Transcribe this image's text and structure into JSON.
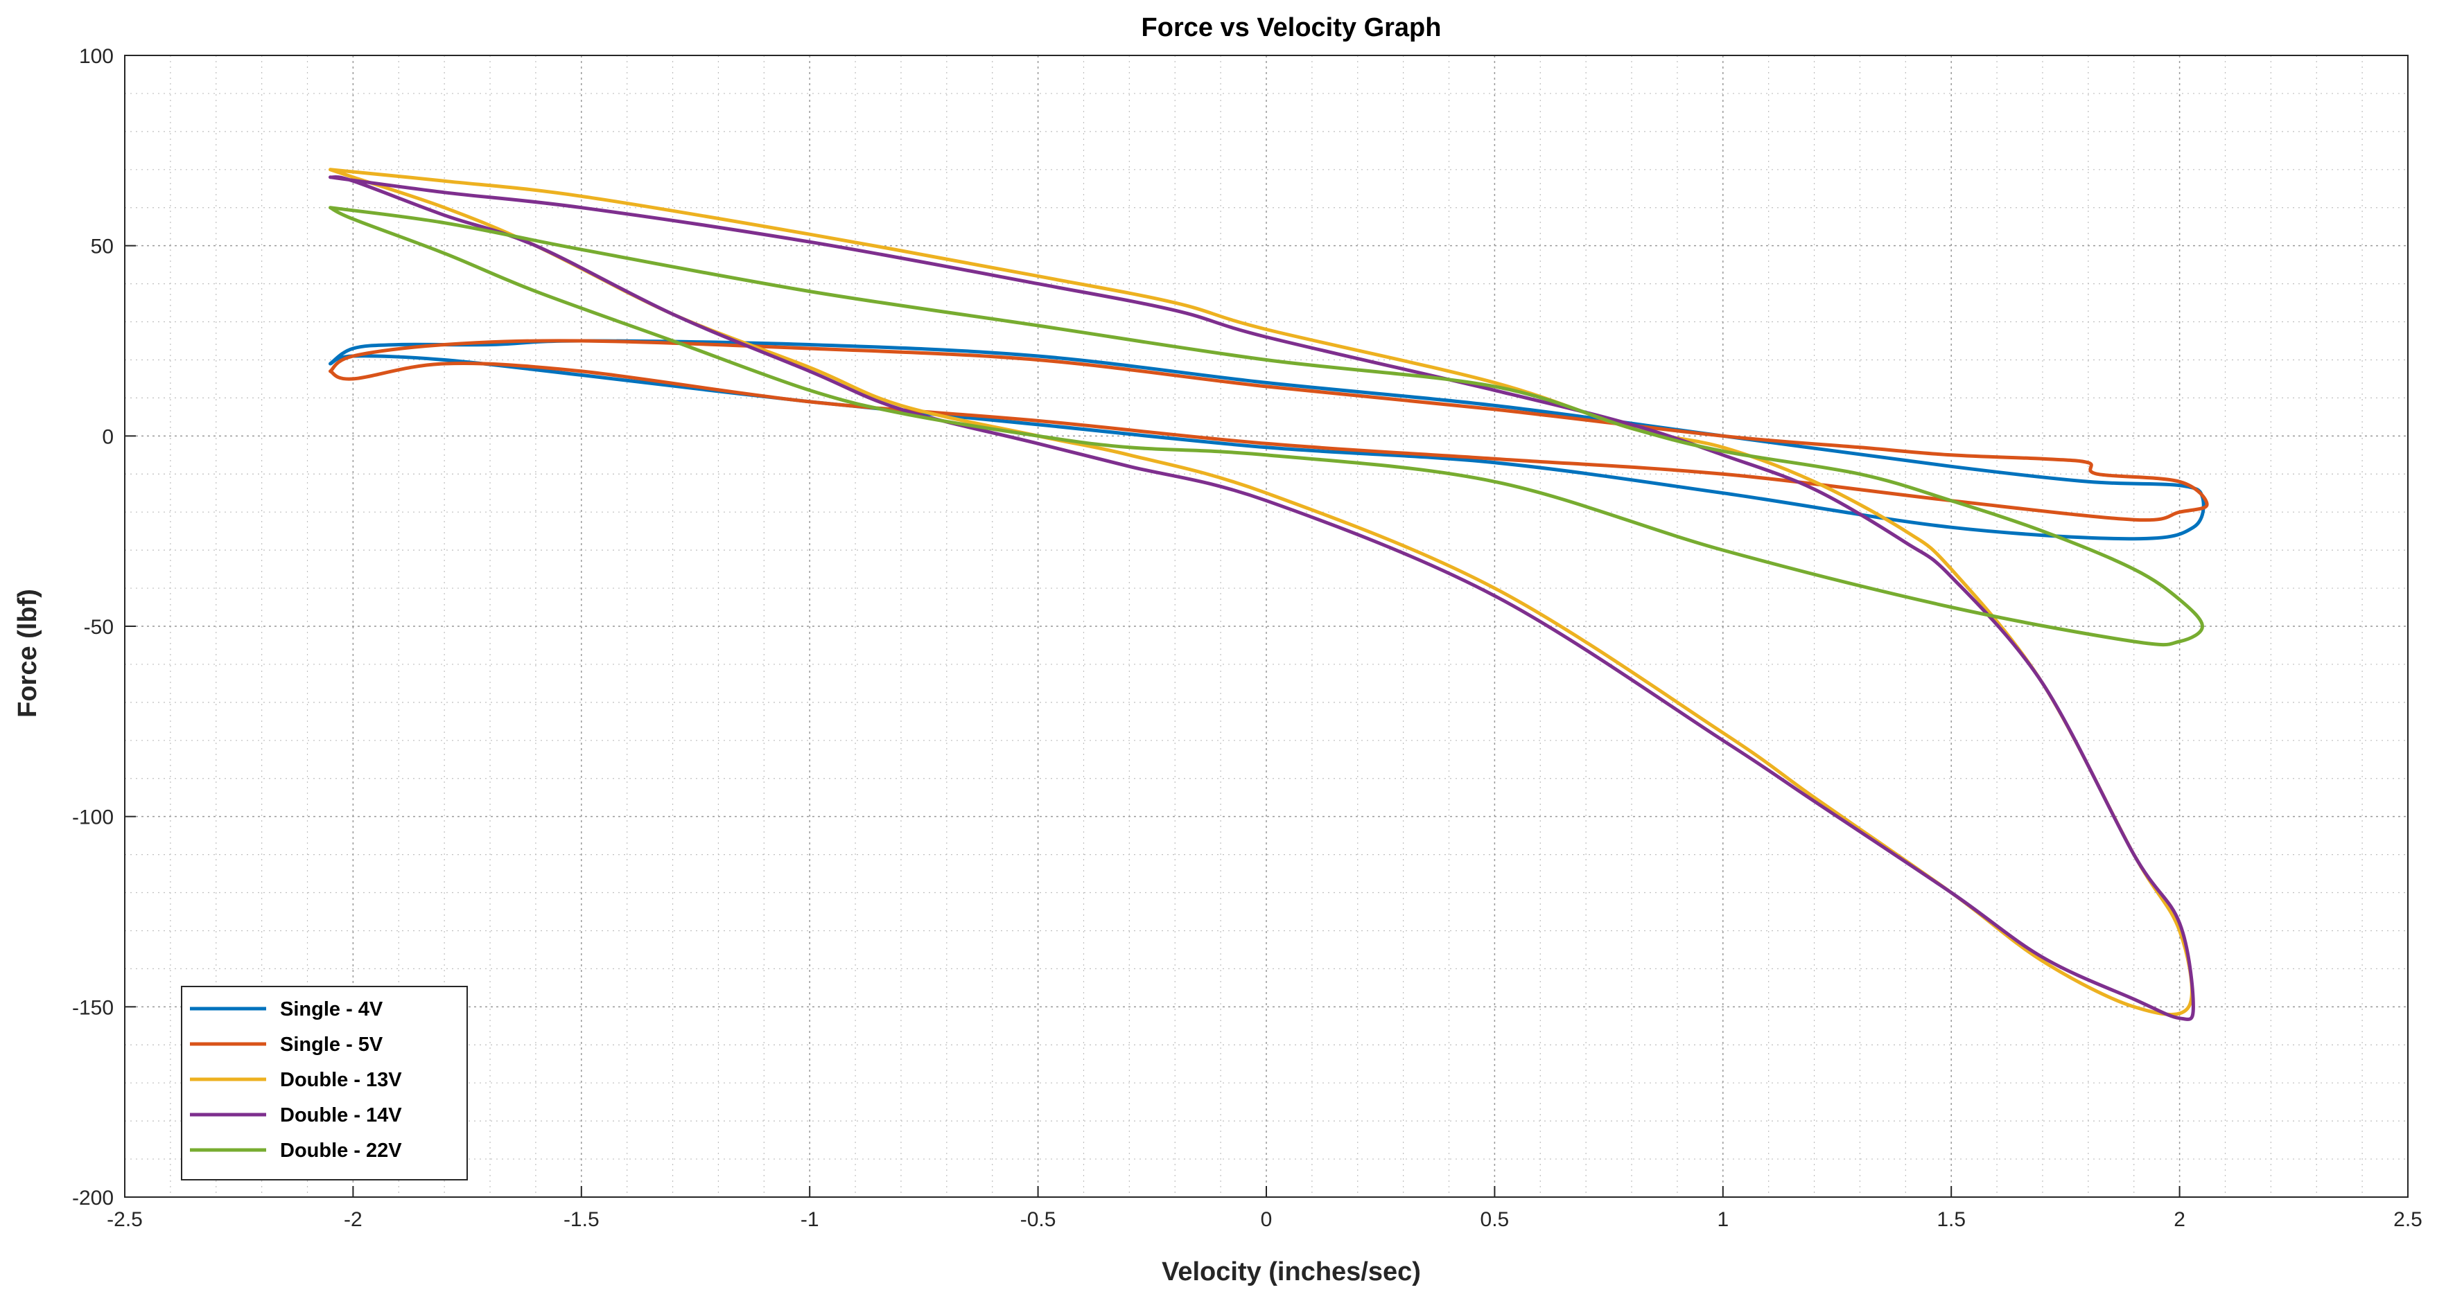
{
  "chart_data": {
    "type": "line",
    "title": "Force vs Velocity Graph",
    "xlabel": "Velocity (inches/sec)",
    "ylabel": "Force (lbf)",
    "xlim": [
      -2.5,
      2.5
    ],
    "ylim": [
      -200,
      100
    ],
    "xticks": [
      -2.5,
      -2,
      -1.5,
      -1,
      -0.5,
      0,
      0.5,
      1,
      1.5,
      2,
      2.5
    ],
    "yticks": [
      -200,
      -150,
      -100,
      -50,
      0,
      50,
      100
    ],
    "xtick_labels": [
      "-2.5",
      "-2",
      "-1.5",
      "-1",
      "-0.5",
      "0",
      "0.5",
      "1",
      "1.5",
      "2",
      "2.5"
    ],
    "ytick_labels": [
      "-200",
      "-150",
      "-100",
      "-50",
      "0",
      "50",
      "100"
    ],
    "grid": true,
    "minor_grid": true,
    "legend_position": "bottom-left",
    "series": [
      {
        "name": "Single - 4V",
        "color": "#0072BD",
        "points": [
          [
            -2.05,
            19
          ],
          [
            -2.0,
            23
          ],
          [
            -1.9,
            24
          ],
          [
            -1.7,
            24
          ],
          [
            -1.5,
            25
          ],
          [
            -1.0,
            24
          ],
          [
            -0.5,
            21
          ],
          [
            0,
            14
          ],
          [
            0.5,
            8
          ],
          [
            1.0,
            0
          ],
          [
            1.5,
            -8
          ],
          [
            1.8,
            -12
          ],
          [
            2.0,
            -13
          ],
          [
            2.05,
            -16
          ],
          [
            2.03,
            -24
          ],
          [
            1.9,
            -27
          ],
          [
            1.5,
            -24
          ],
          [
            1.0,
            -15
          ],
          [
            0.5,
            -7
          ],
          [
            0,
            -3
          ],
          [
            -0.5,
            3
          ],
          [
            -1.0,
            9
          ],
          [
            -1.5,
            16
          ],
          [
            -1.8,
            20
          ],
          [
            -2.0,
            21
          ],
          [
            -2.05,
            19
          ]
        ]
      },
      {
        "name": "Single - 5V",
        "color": "#D95319",
        "points": [
          [
            -2.05,
            17
          ],
          [
            -2.0,
            21
          ],
          [
            -1.8,
            24
          ],
          [
            -1.5,
            25
          ],
          [
            -1.0,
            23
          ],
          [
            -0.5,
            20
          ],
          [
            0,
            13
          ],
          [
            0.5,
            7
          ],
          [
            1.0,
            0
          ],
          [
            1.3,
            -3
          ],
          [
            1.5,
            -5
          ],
          [
            1.7,
            -6
          ],
          [
            1.8,
            -7
          ],
          [
            1.82,
            -10
          ],
          [
            2.0,
            -12
          ],
          [
            2.06,
            -18
          ],
          [
            2.0,
            -20
          ],
          [
            1.9,
            -22
          ],
          [
            1.5,
            -17
          ],
          [
            1.0,
            -10
          ],
          [
            0.5,
            -6
          ],
          [
            0,
            -2
          ],
          [
            -0.5,
            4
          ],
          [
            -1.0,
            9
          ],
          [
            -1.5,
            17
          ],
          [
            -1.8,
            19
          ],
          [
            -2.0,
            15
          ],
          [
            -2.05,
            17
          ]
        ]
      },
      {
        "name": "Double - 13V",
        "color": "#EDB120",
        "points": [
          [
            -2.05,
            70
          ],
          [
            -1.8,
            67
          ],
          [
            -1.5,
            63
          ],
          [
            -1.0,
            53
          ],
          [
            -0.5,
            42
          ],
          [
            -0.2,
            35
          ],
          [
            0,
            28
          ],
          [
            0.5,
            14
          ],
          [
            0.8,
            2
          ],
          [
            1.0,
            -3
          ],
          [
            1.2,
            -12
          ],
          [
            1.4,
            -25
          ],
          [
            1.5,
            -35
          ],
          [
            1.7,
            -65
          ],
          [
            1.9,
            -110
          ],
          [
            2.0,
            -130
          ],
          [
            2.02,
            -150
          ],
          [
            1.9,
            -150
          ],
          [
            1.7,
            -138
          ],
          [
            1.5,
            -120
          ],
          [
            1.2,
            -95
          ],
          [
            1.0,
            -78
          ],
          [
            0.5,
            -40
          ],
          [
            0,
            -15
          ],
          [
            -0.3,
            -5
          ],
          [
            -0.5,
            0
          ],
          [
            -0.8,
            8
          ],
          [
            -1.0,
            18
          ],
          [
            -1.3,
            32
          ],
          [
            -1.6,
            50
          ],
          [
            -1.8,
            60
          ],
          [
            -2.0,
            68
          ],
          [
            -2.05,
            70
          ]
        ]
      },
      {
        "name": "Double - 14V",
        "color": "#7E2F8E",
        "points": [
          [
            -2.05,
            68
          ],
          [
            -1.8,
            64
          ],
          [
            -1.5,
            60
          ],
          [
            -1.0,
            51
          ],
          [
            -0.5,
            40
          ],
          [
            -0.2,
            33
          ],
          [
            0,
            26
          ],
          [
            0.5,
            12
          ],
          [
            0.8,
            3
          ],
          [
            1.0,
            -5
          ],
          [
            1.2,
            -14
          ],
          [
            1.4,
            -28
          ],
          [
            1.5,
            -37
          ],
          [
            1.7,
            -65
          ],
          [
            1.9,
            -110
          ],
          [
            2.0,
            -128
          ],
          [
            2.03,
            -150
          ],
          [
            2.0,
            -153
          ],
          [
            1.9,
            -148
          ],
          [
            1.7,
            -137
          ],
          [
            1.5,
            -120
          ],
          [
            1.2,
            -96
          ],
          [
            1.0,
            -80
          ],
          [
            0.5,
            -42
          ],
          [
            0,
            -17
          ],
          [
            -0.3,
            -8
          ],
          [
            -0.5,
            -2
          ],
          [
            -0.8,
            7
          ],
          [
            -1.0,
            17
          ],
          [
            -1.3,
            32
          ],
          [
            -1.6,
            50
          ],
          [
            -1.8,
            58
          ],
          [
            -2.0,
            67
          ],
          [
            -2.05,
            68
          ]
        ]
      },
      {
        "name": "Double - 22V",
        "color": "#77AC30",
        "points": [
          [
            -2.05,
            60
          ],
          [
            -1.8,
            56
          ],
          [
            -1.5,
            49
          ],
          [
            -1.0,
            38
          ],
          [
            -0.5,
            29
          ],
          [
            0,
            20
          ],
          [
            0.5,
            13
          ],
          [
            0.8,
            2
          ],
          [
            1.0,
            -4
          ],
          [
            1.3,
            -10
          ],
          [
            1.5,
            -17
          ],
          [
            1.7,
            -25
          ],
          [
            1.9,
            -35
          ],
          [
            2.0,
            -43
          ],
          [
            2.05,
            -50
          ],
          [
            2.0,
            -54
          ],
          [
            1.9,
            -54
          ],
          [
            1.5,
            -45
          ],
          [
            1.0,
            -30
          ],
          [
            0.5,
            -12
          ],
          [
            0,
            -5
          ],
          [
            -0.3,
            -3
          ],
          [
            -0.5,
            0
          ],
          [
            -0.8,
            6
          ],
          [
            -1.0,
            12
          ],
          [
            -1.3,
            25
          ],
          [
            -1.6,
            38
          ],
          [
            -1.8,
            48
          ],
          [
            -2.0,
            57
          ],
          [
            -2.05,
            60
          ]
        ]
      }
    ]
  }
}
